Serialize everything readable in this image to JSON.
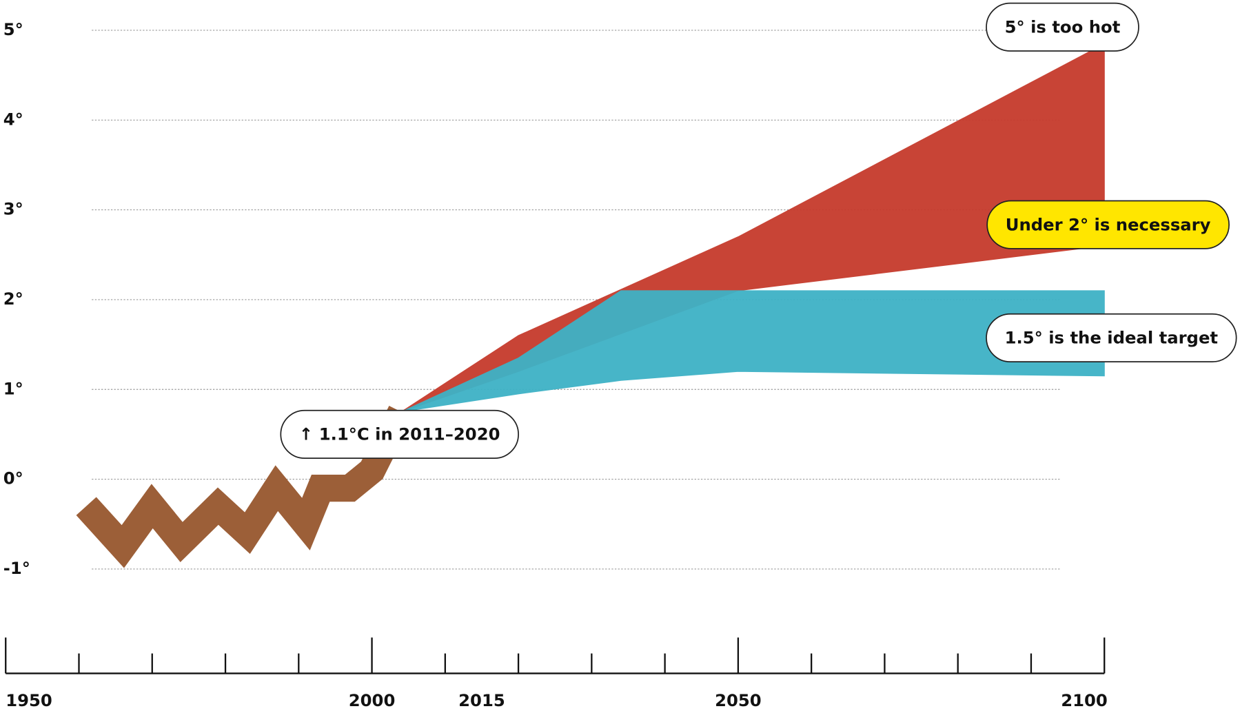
{
  "chart_data": {
    "type": "band",
    "historical": {
      "color": "#9c5f38",
      "x": [
        1961,
        1966,
        1970,
        1974,
        1979,
        1983,
        1987,
        1991,
        1993,
        1997,
        2000,
        2004
      ],
      "values": [
        -0.3,
        -0.75,
        -0.3,
        -0.7,
        -0.3,
        -0.6,
        -0.1,
        -0.5,
        -0.1,
        -0.1,
        0.1,
        0.75
      ]
    },
    "bands": [
      {
        "color": "#c63a2c",
        "x": [
          2004,
          2020,
          2050,
          2100
        ],
        "upper": [
          0.75,
          1.6,
          2.7,
          4.85
        ],
        "lower": [
          0.75,
          1.2,
          2.1,
          2.6
        ]
      },
      {
        "color": "#3eb2c6",
        "x": [
          2004,
          2020,
          2034,
          2050,
          2100
        ],
        "upper": [
          0.75,
          1.35,
          2.1,
          2.1,
          2.1
        ],
        "lower": [
          0.75,
          0.95,
          1.1,
          1.2,
          1.15
        ]
      }
    ],
    "annotations": [
      {
        "text": "5° is too hot",
        "highlight": false
      },
      {
        "text": "Under 2° is necessary",
        "highlight": true
      },
      {
        "text": "1.5° is the ideal target",
        "highlight": false
      },
      {
        "text": "↑ 1.1°C in 2011–2020",
        "highlight": false
      }
    ],
    "highlight_color": "#ffe600",
    "xlim": [
      1950,
      2100
    ],
    "xticks": [
      1950,
      2000,
      2015,
      2050,
      2100
    ],
    "minor_xticks": [
      1950,
      1960,
      1970,
      1980,
      1990,
      2000,
      2010,
      2020,
      2030,
      2040,
      2050,
      2060,
      2070,
      2080,
      2090,
      2100
    ],
    "ylim": [
      -1,
      5
    ],
    "yticks": [
      {
        "value": 5,
        "label": "5°"
      },
      {
        "value": 4,
        "label": "4°"
      },
      {
        "value": 3,
        "label": "3°"
      },
      {
        "value": 2,
        "label": "2°"
      },
      {
        "value": 1,
        "label": "1°"
      },
      {
        "value": 0,
        "label": "0°"
      },
      {
        "value": -1,
        "label": "-1°"
      }
    ],
    "grid": true
  }
}
